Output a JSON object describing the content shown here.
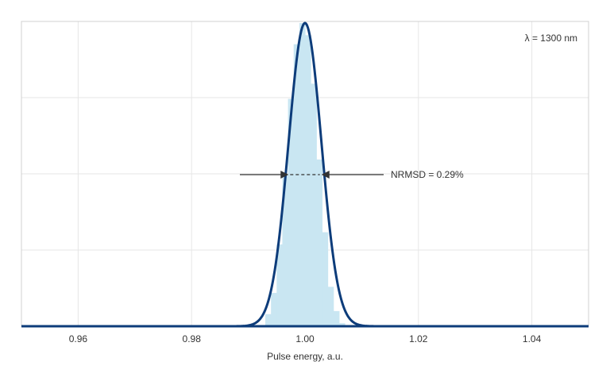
{
  "chart_data": {
    "type": "area",
    "title": "",
    "xlabel": "Pulse energy, a.u.",
    "ylabel": "",
    "xlim": [
      0.95,
      1.05
    ],
    "ylim": [
      0,
      1
    ],
    "xticks": [
      0.96,
      0.98,
      1.0,
      1.02,
      1.04
    ],
    "xtick_labels": [
      "0.96",
      "0.98",
      "1.00",
      "1.02",
      "1.04"
    ],
    "grid": true,
    "legend": "none",
    "series": [
      {
        "kind": "histogram",
        "color": "#c9e6f2",
        "x": [
          0.9935,
          0.9945,
          0.9955,
          0.9965,
          0.9975,
          0.9985,
          0.9995,
          1.0005,
          1.0015,
          1.0025,
          1.0035,
          1.0045,
          1.0055,
          1.0065
        ],
        "values": [
          0.04,
          0.11,
          0.27,
          0.5,
          0.75,
          0.93,
          1.0,
          0.96,
          0.8,
          0.55,
          0.31,
          0.13,
          0.05,
          0.01
        ]
      },
      {
        "kind": "gaussian-fit",
        "color": "#0d3c7a",
        "mean": 1.0,
        "sigma": 0.0029,
        "peak": 1.0
      }
    ],
    "annotations": {
      "wavelength": "λ = 1300 nm",
      "nrmsd": "NRMSD = 0.29%"
    }
  }
}
